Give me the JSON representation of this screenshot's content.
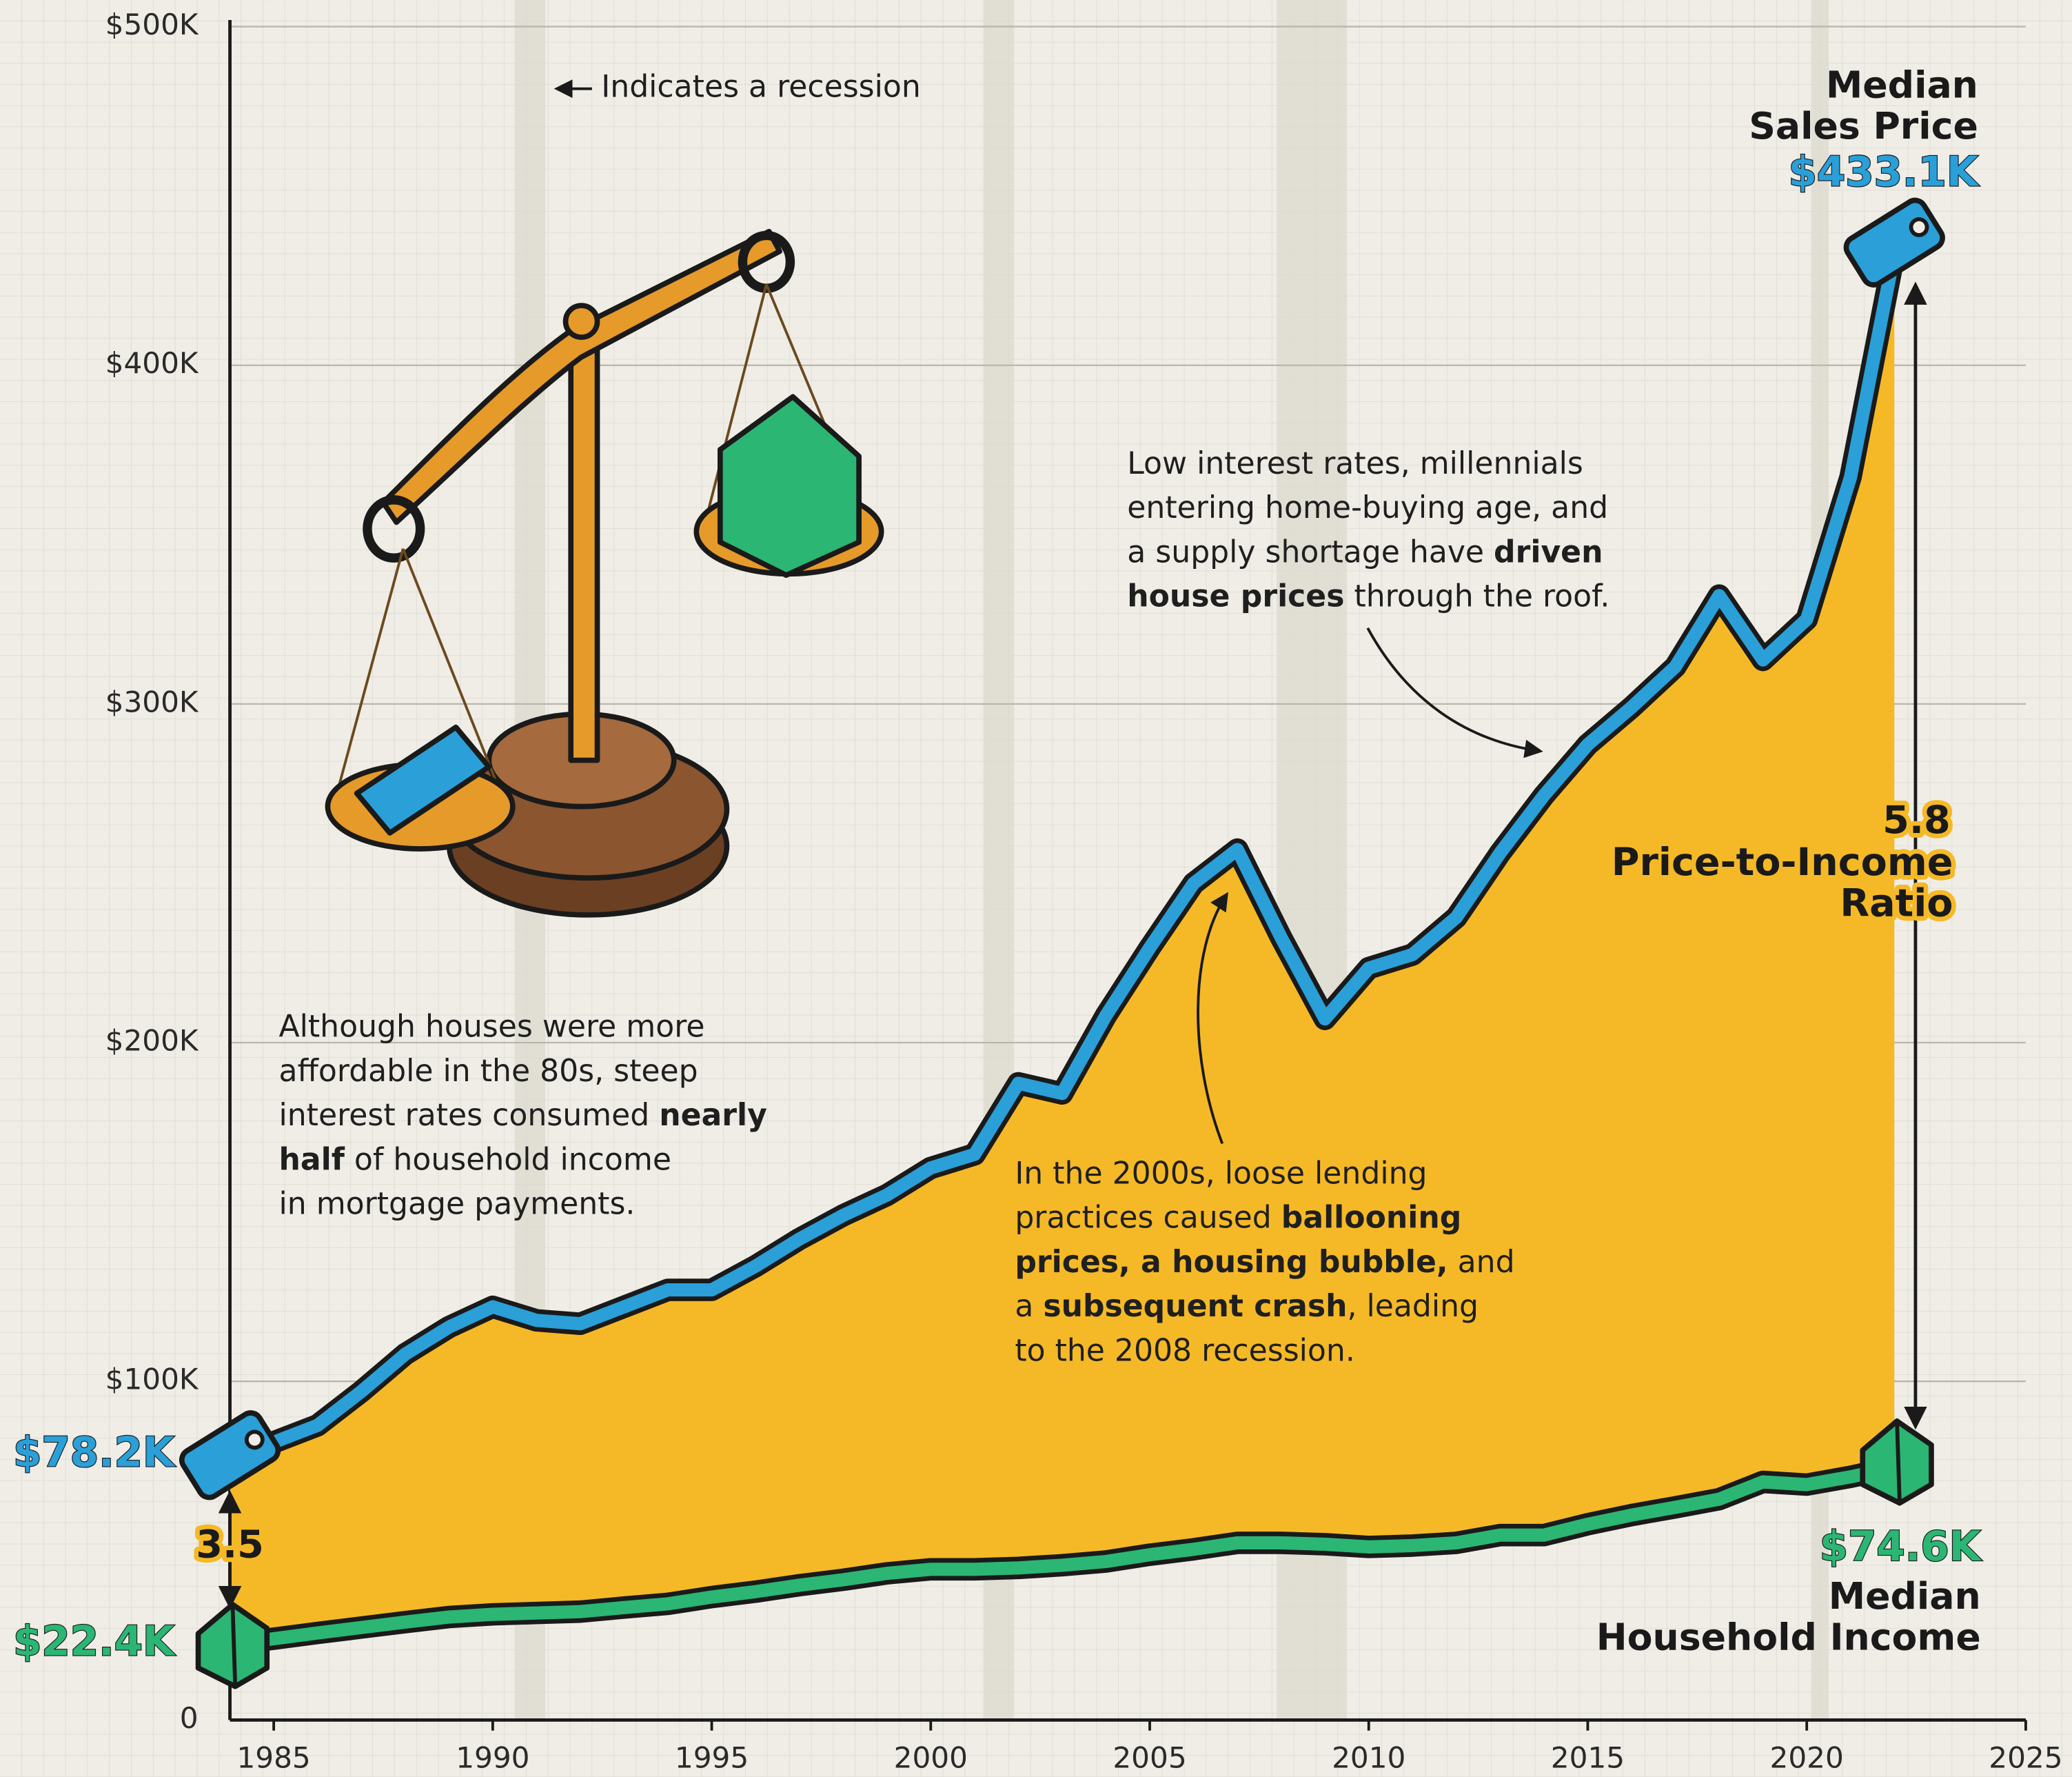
{
  "chart_data": {
    "type": "line",
    "x": [
      1984,
      1985,
      1986,
      1987,
      1988,
      1989,
      1990,
      1991,
      1992,
      1993,
      1994,
      1995,
      1996,
      1997,
      1998,
      1999,
      2000,
      2001,
      2002,
      2003,
      2004,
      2005,
      2006,
      2007,
      2008,
      2009,
      2010,
      2011,
      2012,
      2013,
      2014,
      2015,
      2016,
      2017,
      2018,
      2019,
      2020,
      2021,
      2022
    ],
    "series": [
      {
        "name": "Median Sales Price",
        "color": "#2a9fd8",
        "values": [
          78.2,
          82,
          87,
          97,
          108,
          116,
          122,
          118,
          117,
          122,
          127,
          127,
          134,
          142,
          149,
          155,
          163,
          167,
          188,
          185,
          208,
          228,
          247,
          257,
          231,
          207,
          222,
          226,
          237,
          256,
          273,
          288,
          299,
          311,
          332,
          313,
          325,
          367,
          433.1
        ],
        "value_labels": [
          "$78.2K",
          null,
          null,
          null,
          null,
          null,
          null,
          null,
          null,
          null,
          null,
          null,
          null,
          null,
          null,
          null,
          null,
          null,
          null,
          null,
          null,
          null,
          null,
          null,
          null,
          null,
          null,
          null,
          null,
          null,
          null,
          null,
          null,
          null,
          null,
          null,
          null,
          null,
          "$433.1K"
        ]
      },
      {
        "name": "Median Household Income",
        "color": "#2bb673",
        "values": [
          22.4,
          24,
          25.7,
          27.3,
          28.9,
          30.4,
          31.2,
          31.6,
          32,
          33.2,
          34.3,
          36.3,
          37.9,
          39.8,
          41.4,
          43.3,
          44.5,
          44.5,
          44.9,
          45.7,
          46.8,
          48.8,
          50.4,
          52.3,
          52.3,
          51.9,
          51.1,
          51.5,
          52.3,
          54.6,
          54.6,
          57.8,
          60.5,
          62.8,
          65.2,
          70.3,
          69.5,
          71.8,
          74.6
        ],
        "value_labels": [
          "$22.4K",
          null,
          null,
          null,
          null,
          null,
          null,
          null,
          null,
          null,
          null,
          null,
          null,
          null,
          null,
          null,
          null,
          null,
          null,
          null,
          null,
          null,
          null,
          null,
          null,
          null,
          null,
          null,
          null,
          null,
          null,
          null,
          null,
          null,
          null,
          null,
          null,
          null,
          "$74.6K"
        ]
      }
    ],
    "area_color": "#f5b927",
    "ratio_name": "Price-to-Income Ratio",
    "ratios": [
      3.5,
      5.8
    ],
    "xlim": [
      1984,
      2025
    ],
    "xticks": [
      1985,
      1990,
      1995,
      2000,
      2005,
      2010,
      2015,
      2020,
      2025
    ],
    "ylim": [
      0,
      500
    ],
    "yticks": [
      0,
      {
        "value": 100,
        "label": "$100K"
      },
      {
        "value": 200,
        "label": "$200K"
      },
      {
        "value": 300,
        "label": "$300K"
      },
      {
        "value": 400,
        "label": "$400K"
      },
      {
        "value": 500,
        "label": "$500K"
      }
    ],
    "grid": true,
    "recessions": [
      [
        1990.5,
        1991.2
      ],
      [
        2001.2,
        2001.9
      ],
      [
        2007.9,
        2009.5
      ],
      [
        2020.1,
        2020.5
      ]
    ],
    "recession_note": "Indicates a recession",
    "annotations": [
      {
        "lines": [
          [
            {
              "text": "Although houses were more"
            }
          ],
          [
            {
              "text": "affordable in the 80s, steep"
            }
          ],
          [
            {
              "text": "interest rates consumed "
            },
            {
              "text": "nearly",
              "bold": true
            }
          ],
          [
            {
              "text": "half",
              "bold": true
            },
            {
              "text": " of household income"
            }
          ],
          [
            {
              "text": "in mortgage payments."
            }
          ]
        ]
      },
      {
        "lines": [
          [
            {
              "text": "In the 2000s, loose lending"
            }
          ],
          [
            {
              "text": "practices caused "
            },
            {
              "text": "ballooning",
              "bold": true
            }
          ],
          [
            {
              "text": "prices, a housing bubble,",
              "bold": true
            },
            {
              "text": " and"
            }
          ],
          [
            {
              "text": "a "
            },
            {
              "text": "subsequent crash",
              "bold": true
            },
            {
              "text": ", leading"
            }
          ],
          [
            {
              "text": "to the 2008 recession."
            }
          ]
        ]
      },
      {
        "lines": [
          [
            {
              "text": "Low interest rates, millennials"
            }
          ],
          [
            {
              "text": "entering home-buying age, and"
            }
          ],
          [
            {
              "text": "a supply shortage have "
            },
            {
              "text": "driven",
              "bold": true
            }
          ],
          [
            {
              "text": "house prices",
              "bold": true
            },
            {
              "text": " through the roof."
            }
          ]
        ]
      }
    ]
  }
}
